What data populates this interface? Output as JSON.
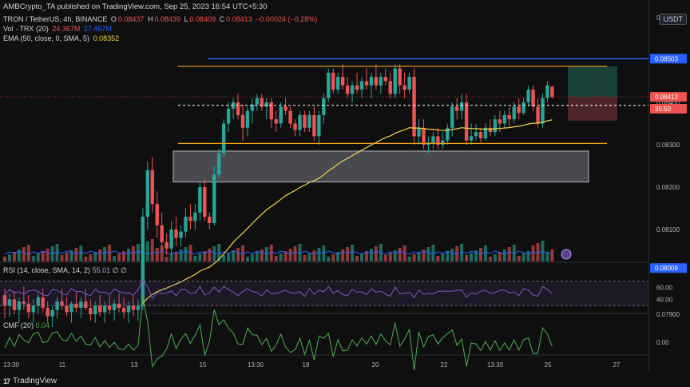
{
  "header": {
    "published": "AMBCrypto_TA published on TradingView.com, Sep 25, 2023 16:54 UTC+5:30",
    "symbol": "TRON / TetherUS, 4h, BINANCE",
    "ohlc": {
      "o_label": "O",
      "o": "0.08437",
      "h_label": "H",
      "h": "0.08439",
      "l_label": "L",
      "l": "0.08409",
      "c_label": "C",
      "c": "0.08413",
      "chg": "−0.00024 (−0.28%)"
    },
    "vol_label": "Vol · TRX (20)",
    "vol_1": "24.367M",
    "vol_2": "27.467M",
    "ema_label": "EMA (50, close, 0, SMA, 5)",
    "ema_value": "0.08352",
    "currency": "USDT"
  },
  "rsi": {
    "label": "RSI (14, close, SMA, 14, 2)",
    "value": "55.01",
    "extra": "∅ ∅",
    "ticks": [
      "60.00",
      "40.00"
    ]
  },
  "cmf": {
    "label": "CMF (20)",
    "value": "0.04",
    "ticks": [
      "0.00"
    ]
  },
  "footer": {
    "brand": "TradingView"
  },
  "colors": {
    "up": "#26a69a",
    "down": "#ef5350",
    "ema": "#f2d34a",
    "channel": "#f0a51b",
    "zone": "#787b86",
    "rsi": "#7e57c2",
    "cmf": "#4caf50",
    "level": "#2962ff"
  },
  "chart_data": {
    "type": "candlestick",
    "x_tick_labels": [
      "13:30",
      "11",
      "13",
      "15",
      "13:30",
      "18",
      "20",
      "22",
      "13:30",
      "25",
      "27"
    ],
    "y_tick_labels": [
      "0.08600",
      "0.08400",
      "0.08300",
      "0.08200",
      "0.08100",
      "0.07900"
    ],
    "price_labels": [
      {
        "value": "0.08503",
        "color": "#2962ff"
      },
      {
        "value": "0.08413",
        "color": "#ef5350"
      },
      {
        "value": "35:50",
        "color": "#ef5350"
      },
      {
        "value": "0.08009",
        "color": "#2962ff"
      }
    ],
    "levels": {
      "horizontal_resistance": 0.08503,
      "horizontal_support": 0.08009,
      "current": 0.08413,
      "channel_top": 0.08485,
      "channel_bottom": 0.08303,
      "zone_top": 0.08285,
      "zone_bottom": 0.08212,
      "mid_dashed": 0.08393
    },
    "candles": [
      [
        0.07945,
        0.0796,
        0.0789,
        0.0792
      ],
      [
        0.0792,
        0.0795,
        0.07895,
        0.07935
      ],
      [
        0.07935,
        0.07955,
        0.079,
        0.0791
      ],
      [
        0.0791,
        0.0794,
        0.0788,
        0.0793
      ],
      [
        0.0793,
        0.07965,
        0.0791,
        0.07925
      ],
      [
        0.07925,
        0.07945,
        0.0789,
        0.07905
      ],
      [
        0.07905,
        0.07935,
        0.0788,
        0.0792
      ],
      [
        0.0792,
        0.0795,
        0.079,
        0.0794
      ],
      [
        0.0794,
        0.0796,
        0.07905,
        0.07915
      ],
      [
        0.07915,
        0.0793,
        0.0788,
        0.07895
      ],
      [
        0.07895,
        0.0792,
        0.0787,
        0.0791
      ],
      [
        0.0791,
        0.0794,
        0.0789,
        0.0793
      ],
      [
        0.0793,
        0.0796,
        0.0791,
        0.0792
      ],
      [
        0.0792,
        0.0794,
        0.07895,
        0.07905
      ],
      [
        0.07905,
        0.0793,
        0.0788,
        0.07925
      ],
      [
        0.07925,
        0.07955,
        0.07905,
        0.07915
      ],
      [
        0.07915,
        0.0794,
        0.0789,
        0.0793
      ],
      [
        0.0793,
        0.0796,
        0.0791,
        0.07915
      ],
      [
        0.07915,
        0.07935,
        0.07885,
        0.079
      ],
      [
        0.079,
        0.0793,
        0.0788,
        0.0792
      ],
      [
        0.0792,
        0.07945,
        0.07895,
        0.07905
      ],
      [
        0.07905,
        0.0793,
        0.0788,
        0.0792
      ],
      [
        0.0792,
        0.07945,
        0.079,
        0.0791
      ],
      [
        0.0791,
        0.07935,
        0.07885,
        0.07925
      ],
      [
        0.07925,
        0.0795,
        0.07905,
        0.07915
      ],
      [
        0.07915,
        0.0794,
        0.0789,
        0.07905
      ],
      [
        0.07905,
        0.0793,
        0.0788,
        0.0792
      ],
      [
        0.0792,
        0.07945,
        0.07895,
        0.0791
      ],
      [
        0.0791,
        0.07935,
        0.07885,
        0.0792
      ],
      [
        0.0792,
        0.0815,
        0.0791,
        0.0813
      ],
      [
        0.0813,
        0.0826,
        0.081,
        0.0824
      ],
      [
        0.0824,
        0.0827,
        0.0814,
        0.0816
      ],
      [
        0.0816,
        0.0819,
        0.0808,
        0.0811
      ],
      [
        0.0811,
        0.0814,
        0.0805,
        0.0807
      ],
      [
        0.0807,
        0.0809,
        0.0804,
        0.08055
      ],
      [
        0.08055,
        0.0812,
        0.0804,
        0.081
      ],
      [
        0.081,
        0.0813,
        0.0806,
        0.0808
      ],
      [
        0.0808,
        0.0811,
        0.0806,
        0.08095
      ],
      [
        0.08095,
        0.0815,
        0.0808,
        0.0813
      ],
      [
        0.0813,
        0.0816,
        0.081,
        0.0812
      ],
      [
        0.0812,
        0.0816,
        0.081,
        0.0814
      ],
      [
        0.0814,
        0.0821,
        0.0812,
        0.082
      ],
      [
        0.082,
        0.0822,
        0.0812,
        0.0813
      ],
      [
        0.0813,
        0.0814,
        0.081,
        0.08115
      ],
      [
        0.08115,
        0.0825,
        0.0811,
        0.0823
      ],
      [
        0.0823,
        0.0829,
        0.0822,
        0.0828
      ],
      [
        0.0828,
        0.0836,
        0.0827,
        0.0835
      ],
      [
        0.0835,
        0.084,
        0.0833,
        0.08385
      ],
      [
        0.08385,
        0.0841,
        0.0836,
        0.084
      ],
      [
        0.084,
        0.0842,
        0.0836,
        0.0837
      ],
      [
        0.0837,
        0.08395,
        0.0831,
        0.0834
      ],
      [
        0.0834,
        0.0839,
        0.0832,
        0.0838
      ],
      [
        0.0838,
        0.0841,
        0.0835,
        0.08395
      ],
      [
        0.08395,
        0.0842,
        0.0838,
        0.0841
      ],
      [
        0.0841,
        0.0842,
        0.0838,
        0.0839
      ],
      [
        0.0839,
        0.0841,
        0.0836,
        0.084
      ],
      [
        0.084,
        0.0841,
        0.0834,
        0.0836
      ],
      [
        0.0836,
        0.0838,
        0.0833,
        0.0835
      ],
      [
        0.0835,
        0.084,
        0.0834,
        0.0839
      ],
      [
        0.0839,
        0.0841,
        0.0837,
        0.0838
      ],
      [
        0.0838,
        0.0839,
        0.0834,
        0.0835
      ],
      [
        0.0835,
        0.0836,
        0.0832,
        0.08335
      ],
      [
        0.08335,
        0.0838,
        0.0832,
        0.0837
      ],
      [
        0.0837,
        0.0838,
        0.0833,
        0.0834
      ],
      [
        0.0834,
        0.0838,
        0.0833,
        0.0837
      ],
      [
        0.0837,
        0.0839,
        0.0831,
        0.0832
      ],
      [
        0.0832,
        0.0838,
        0.083,
        0.0837
      ],
      [
        0.0837,
        0.0842,
        0.0835,
        0.0841
      ],
      [
        0.0841,
        0.0848,
        0.084,
        0.0847
      ],
      [
        0.0847,
        0.0848,
        0.0842,
        0.0843
      ],
      [
        0.0843,
        0.0847,
        0.0842,
        0.0846
      ],
      [
        0.0846,
        0.0849,
        0.0843,
        0.0844
      ],
      [
        0.0844,
        0.0846,
        0.0841,
        0.0842
      ],
      [
        0.0842,
        0.0845,
        0.084,
        0.0844
      ],
      [
        0.0844,
        0.0847,
        0.0842,
        0.0843
      ],
      [
        0.0843,
        0.0846,
        0.0841,
        0.0845
      ],
      [
        0.0845,
        0.0848,
        0.0843,
        0.0844
      ],
      [
        0.0844,
        0.0847,
        0.0841,
        0.0846
      ],
      [
        0.0846,
        0.0849,
        0.0843,
        0.0844
      ],
      [
        0.0844,
        0.0847,
        0.0842,
        0.0846
      ],
      [
        0.0846,
        0.0848,
        0.0844,
        0.0845
      ],
      [
        0.0845,
        0.0847,
        0.0841,
        0.0842
      ],
      [
        0.0842,
        0.0849,
        0.0841,
        0.0848
      ],
      [
        0.0848,
        0.0849,
        0.0842,
        0.0844
      ],
      [
        0.0844,
        0.0847,
        0.0841,
        0.0843
      ],
      [
        0.0843,
        0.0847,
        0.0842,
        0.0846
      ],
      [
        0.0846,
        0.0848,
        0.083,
        0.0832
      ],
      [
        0.0832,
        0.0836,
        0.083,
        0.0834
      ],
      [
        0.0834,
        0.0836,
        0.0829,
        0.083
      ],
      [
        0.083,
        0.0832,
        0.0828,
        0.08305
      ],
      [
        0.08305,
        0.0833,
        0.0829,
        0.0832
      ],
      [
        0.0832,
        0.0834,
        0.0829,
        0.083
      ],
      [
        0.083,
        0.0833,
        0.0829,
        0.0831
      ],
      [
        0.0831,
        0.0835,
        0.083,
        0.0834
      ],
      [
        0.0834,
        0.084,
        0.0832,
        0.0839
      ],
      [
        0.0839,
        0.0841,
        0.0836,
        0.0838
      ],
      [
        0.0838,
        0.0842,
        0.0836,
        0.084
      ],
      [
        0.084,
        0.0842,
        0.083,
        0.0831
      ],
      [
        0.0831,
        0.0835,
        0.083,
        0.0832
      ],
      [
        0.0832,
        0.0835,
        0.0831,
        0.0833
      ],
      [
        0.0833,
        0.0834,
        0.08305,
        0.08315
      ],
      [
        0.08315,
        0.0835,
        0.0831,
        0.0834
      ],
      [
        0.0834,
        0.0836,
        0.0832,
        0.0833
      ],
      [
        0.0833,
        0.0837,
        0.0832,
        0.0836
      ],
      [
        0.0836,
        0.0838,
        0.0833,
        0.0835
      ],
      [
        0.0835,
        0.0838,
        0.0834,
        0.0837
      ],
      [
        0.0837,
        0.0839,
        0.0834,
        0.0836
      ],
      [
        0.0836,
        0.084,
        0.0835,
        0.0839
      ],
      [
        0.0839,
        0.0841,
        0.0836,
        0.08375
      ],
      [
        0.08375,
        0.0841,
        0.0837,
        0.084
      ],
      [
        0.084,
        0.0844,
        0.0839,
        0.0843
      ],
      [
        0.0843,
        0.0844,
        0.0838,
        0.0839
      ],
      [
        0.0839,
        0.0841,
        0.0834,
        0.0835
      ],
      [
        0.0835,
        0.0842,
        0.0834,
        0.0841
      ],
      [
        0.0841,
        0.0845,
        0.084,
        0.0844
      ],
      [
        0.08437,
        0.08439,
        0.08409,
        0.08413
      ]
    ]
  }
}
